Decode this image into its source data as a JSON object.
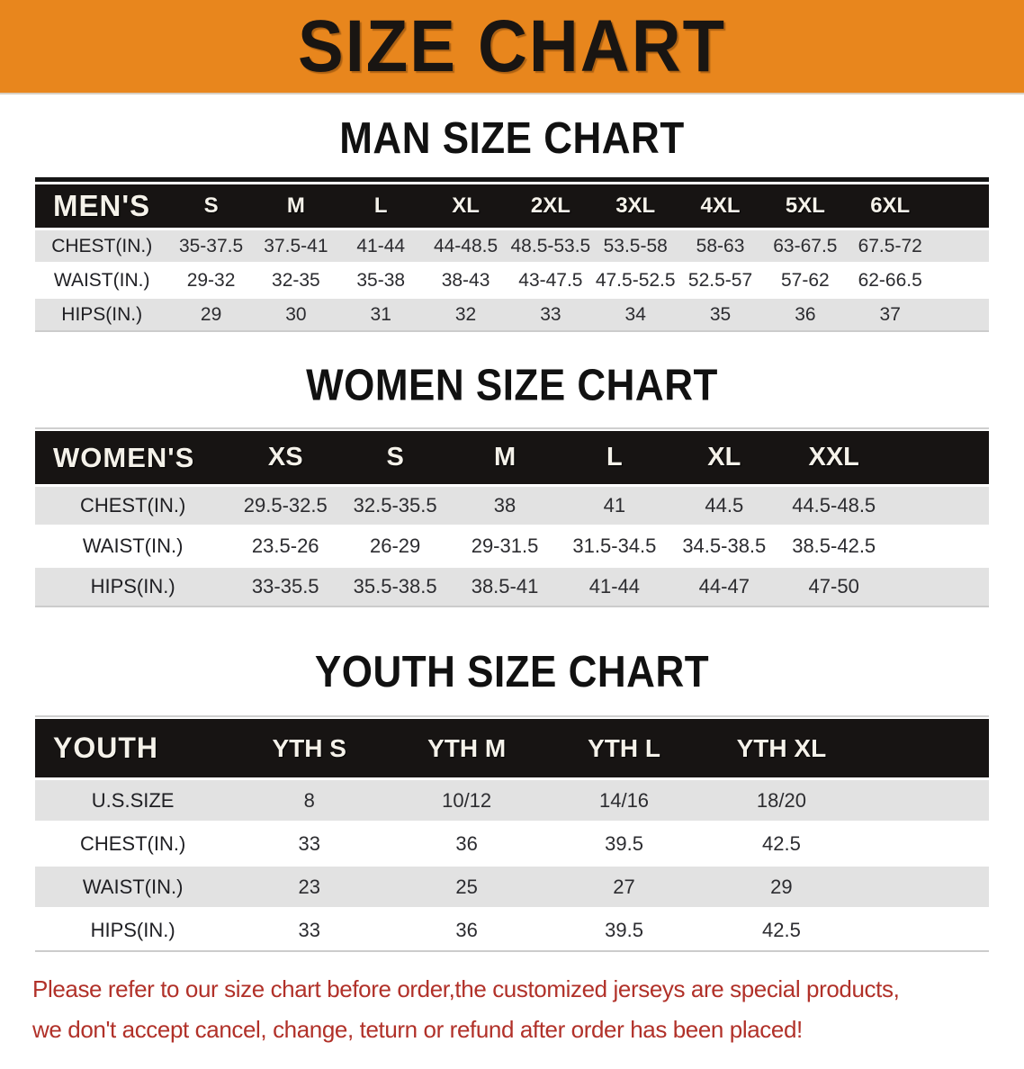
{
  "banner": {
    "title": "SIZE CHART",
    "bg_color": "#E8861D",
    "text_color": "#191512"
  },
  "colors": {
    "table_header_bg": "#171413",
    "row_alt_gray": "#E2E2E2",
    "disclaimer_red": "#B13129"
  },
  "sections": [
    {
      "key": "men",
      "heading": "MAN SIZE CHART",
      "table": {
        "header_label": "MEN'S",
        "columns": [
          "S",
          "M",
          "L",
          "XL",
          "2XL",
          "3XL",
          "4XL",
          "5XL",
          "6XL"
        ],
        "rows": [
          {
            "label": "CHEST(IN.)",
            "values": [
              "35-37.5",
              "37.5-41",
              "41-44",
              "44-48.5",
              "48.5-53.5",
              "53.5-58",
              "58-63",
              "63-67.5",
              "67.5-72"
            ]
          },
          {
            "label": "WAIST(IN.)",
            "values": [
              "29-32",
              "32-35",
              "35-38",
              "38-43",
              "43-47.5",
              "47.5-52.5",
              "52.5-57",
              "57-62",
              "62-66.5"
            ]
          },
          {
            "label": "HIPS(IN.)",
            "values": [
              "29",
              "30",
              "31",
              "32",
              "33",
              "34",
              "35",
              "36",
              "37"
            ]
          }
        ]
      }
    },
    {
      "key": "women",
      "heading": "WOMEN SIZE CHART",
      "table": {
        "header_label": "WOMEN'S",
        "columns": [
          "XS",
          "S",
          "M",
          "L",
          "XL",
          "XXL"
        ],
        "rows": [
          {
            "label": "CHEST(IN.)",
            "values": [
              "29.5-32.5",
              "32.5-35.5",
              "38",
              "41",
              "44.5",
              "44.5-48.5"
            ]
          },
          {
            "label": "WAIST(IN.)",
            "values": [
              "23.5-26",
              "26-29",
              "29-31.5",
              "31.5-34.5",
              "34.5-38.5",
              "38.5-42.5"
            ]
          },
          {
            "label": "HIPS(IN.)",
            "values": [
              "33-35.5",
              "35.5-38.5",
              "38.5-41",
              "41-44",
              "44-47",
              "47-50"
            ]
          }
        ]
      }
    },
    {
      "key": "youth",
      "heading": "YOUTH SIZE CHART",
      "table": {
        "header_label": "YOUTH",
        "columns": [
          "YTH S",
          "YTH M",
          "YTH L",
          "YTH XL"
        ],
        "rows": [
          {
            "label": "U.S.SIZE",
            "values": [
              "8",
              "10/12",
              "14/16",
              "18/20"
            ]
          },
          {
            "label": "CHEST(IN.)",
            "values": [
              "33",
              "36",
              "39.5",
              "42.5"
            ]
          },
          {
            "label": "WAIST(IN.)",
            "values": [
              "23",
              "25",
              "27",
              "29"
            ]
          },
          {
            "label": "HIPS(IN.)",
            "values": [
              "33",
              "36",
              "39.5",
              "42.5"
            ]
          }
        ]
      }
    }
  ],
  "disclaimer": {
    "line1": "Please refer to our size chart before order,the customized jerseys are special products,",
    "line2": "we don't accept cancel, change, teturn or refund after order has been placed!"
  }
}
